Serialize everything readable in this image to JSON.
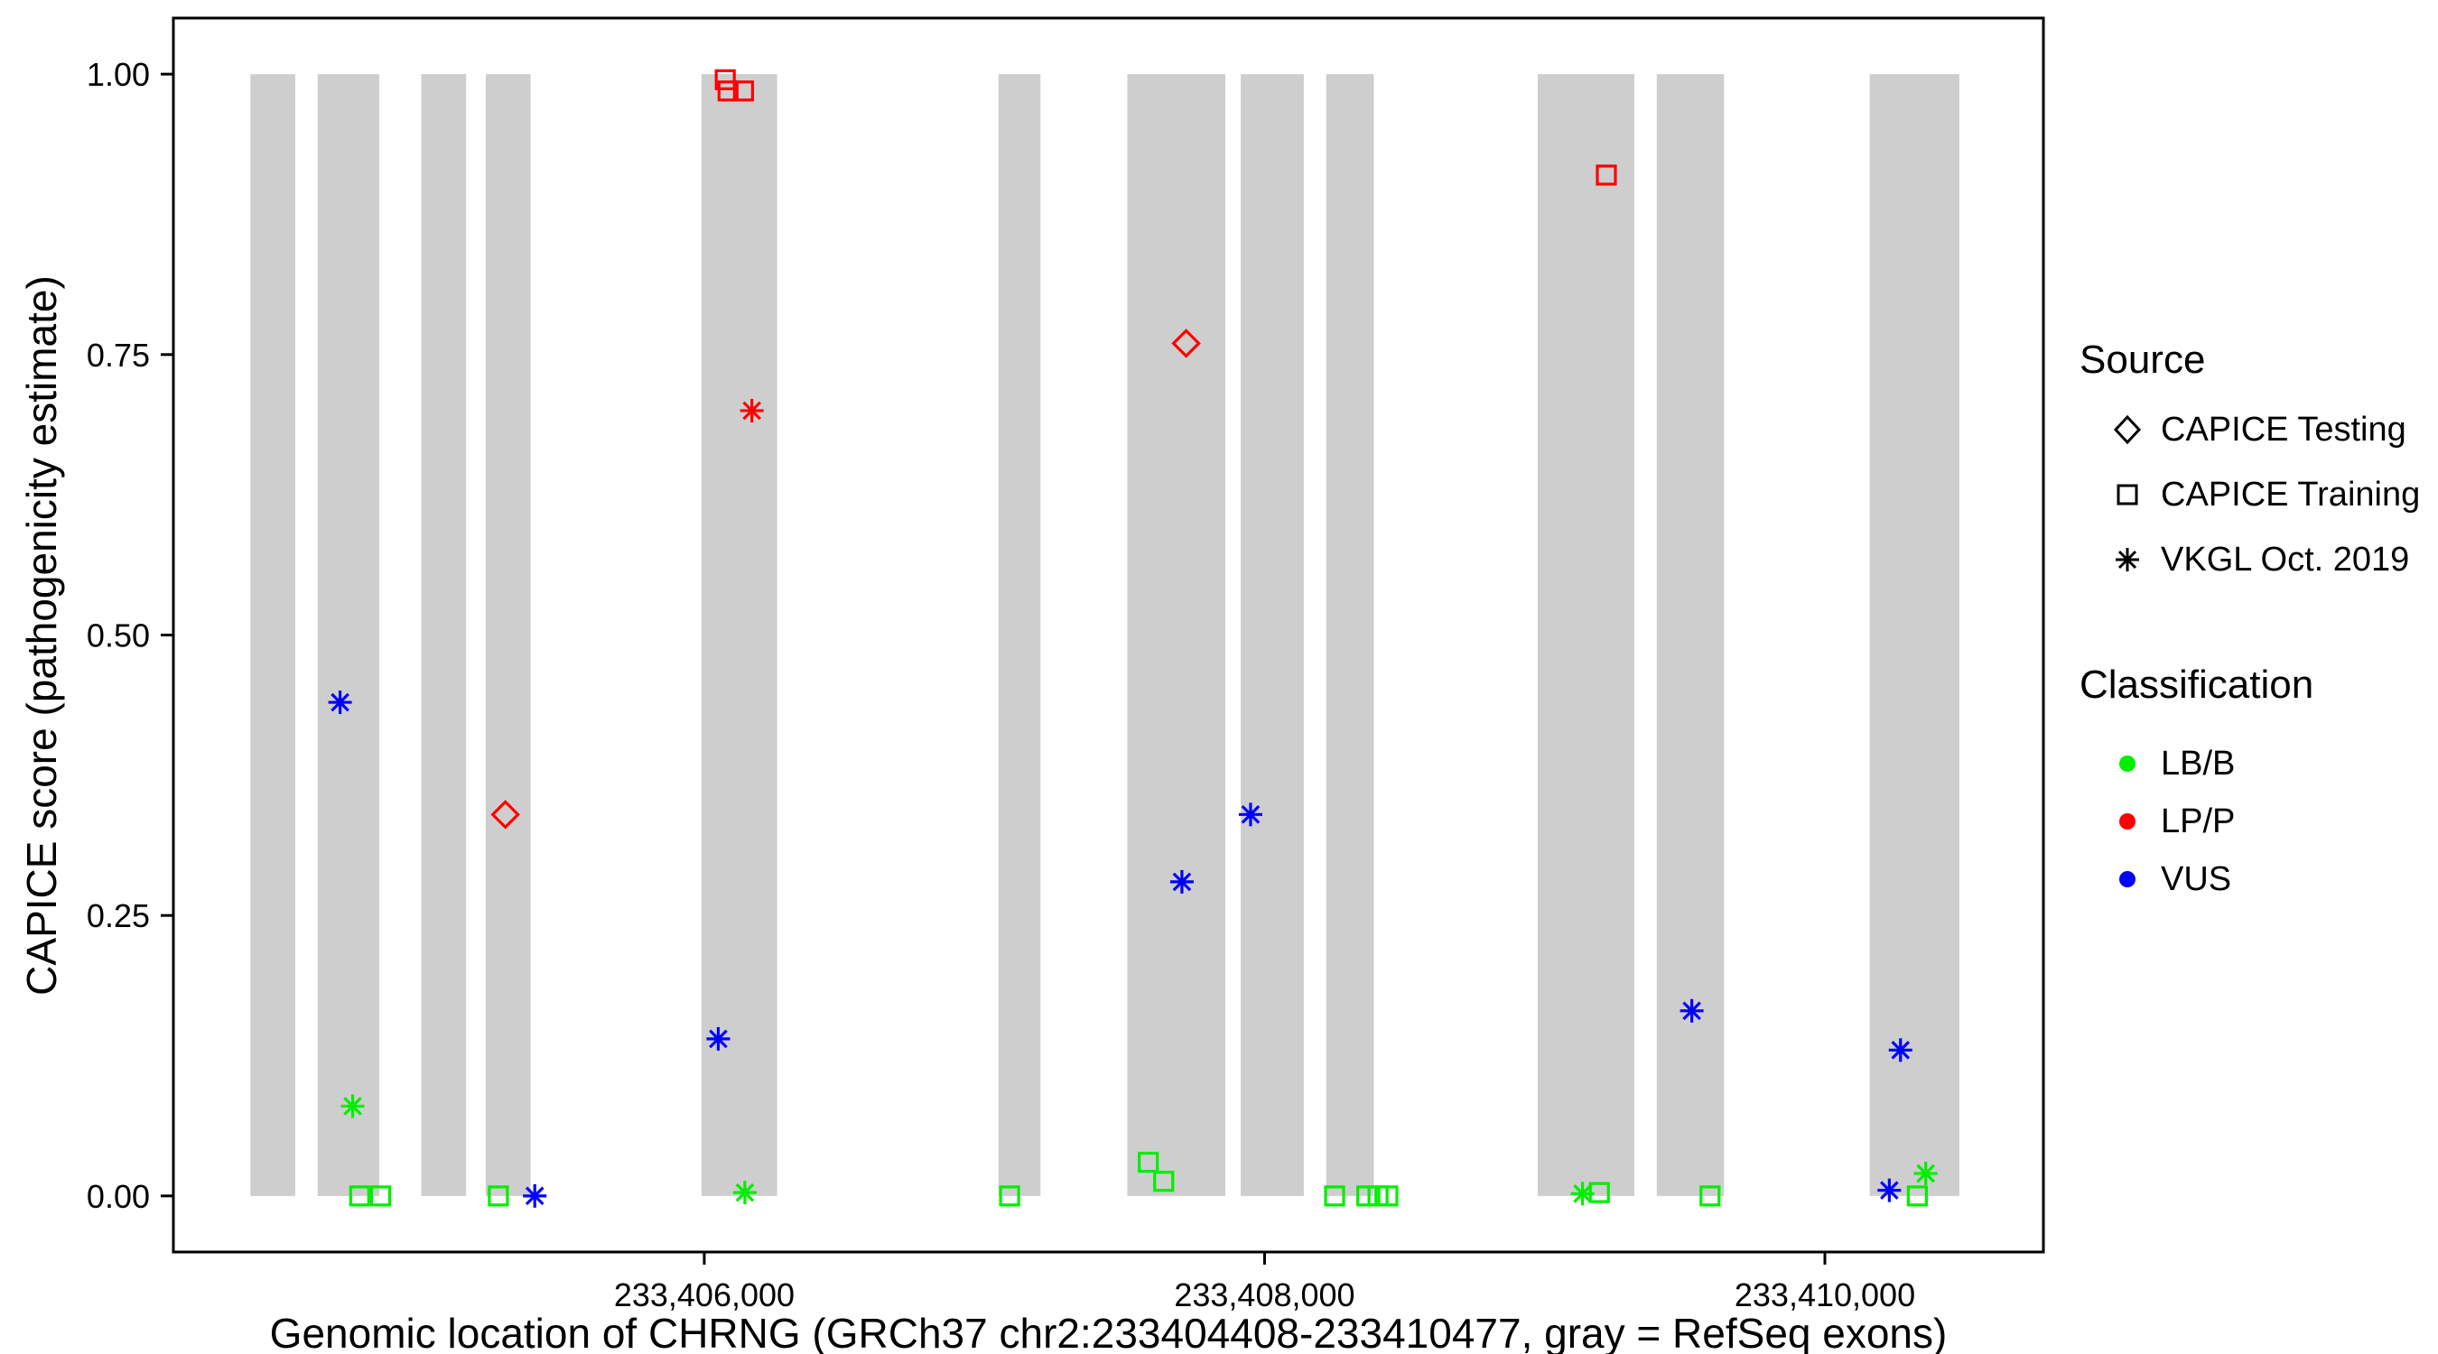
{
  "legend": {
    "source_title": "Source",
    "source_items": [
      {
        "label": "CAPICE Testing",
        "shape": "diamond"
      },
      {
        "label": "CAPICE Training",
        "shape": "square"
      },
      {
        "label": "VKGL Oct. 2019",
        "shape": "asterisk"
      }
    ],
    "classification_title": "Classification",
    "classification_items": [
      {
        "label": "LB/B",
        "color": "#00EE00"
      },
      {
        "label": "LP/P",
        "color": "#FF0000"
      },
      {
        "label": "VUS",
        "color": "#0000FF"
      }
    ]
  },
  "chart_data": {
    "type": "scatter",
    "title": "",
    "xlabel": "Genomic location of CHRNG (GRCh37 chr2:233404408-233410477, gray = RefSeq exons)",
    "ylabel": "CAPICE score (pathogenicity estimate)",
    "x_domain": [
      233404105,
      233410780
    ],
    "y_domain": [
      -0.05,
      1.05
    ],
    "x_ticks": [
      {
        "value": 233406000,
        "label": "233,406,000"
      },
      {
        "value": 233408000,
        "label": "233,408,000"
      },
      {
        "value": 233410000,
        "label": "233,410,000"
      }
    ],
    "y_ticks": [
      {
        "value": 0.0,
        "label": "0.00"
      },
      {
        "value": 0.25,
        "label": "0.25"
      },
      {
        "value": 0.5,
        "label": "0.50"
      },
      {
        "value": 0.75,
        "label": "0.75"
      },
      {
        "value": 1.0,
        "label": "1.00"
      }
    ],
    "exon_color": "#CECECE",
    "exon_band": [
      0.0,
      1.0
    ],
    "exons": [
      [
        233404380,
        233404540
      ],
      [
        233404620,
        233404840
      ],
      [
        233404990,
        233405150
      ],
      [
        233405220,
        233405380
      ],
      [
        233405990,
        233406260
      ],
      [
        233407050,
        233407200
      ],
      [
        233407510,
        233407860
      ],
      [
        233407915,
        233408140
      ],
      [
        233408220,
        233408390
      ],
      [
        233408975,
        233409320
      ],
      [
        233409400,
        233409640
      ],
      [
        233410160,
        233410480
      ]
    ],
    "colors": {
      "LB/B": "#00EE00",
      "LP/P": "#FF0000",
      "VUS": "#0000FF"
    },
    "shapes": {
      "CAPICE Testing": "diamond",
      "CAPICE Training": "square",
      "VKGL Oct. 2019": "asterisk"
    },
    "points": [
      {
        "x": 233404700,
        "y": 0.44,
        "source": "VKGL Oct. 2019",
        "class": "VUS"
      },
      {
        "x": 233404745,
        "y": 0.08,
        "source": "VKGL Oct. 2019",
        "class": "LB/B"
      },
      {
        "x": 233404770,
        "y": 0.0,
        "source": "CAPICE Training",
        "class": "LB/B"
      },
      {
        "x": 233404845,
        "y": 0.0,
        "source": "CAPICE Training",
        "class": "LB/B"
      },
      {
        "x": 233405290,
        "y": 0.34,
        "source": "CAPICE Testing",
        "class": "LP/P"
      },
      {
        "x": 233405265,
        "y": 0.0,
        "source": "CAPICE Training",
        "class": "LB/B"
      },
      {
        "x": 233405395,
        "y": 0.0,
        "source": "VKGL Oct. 2019",
        "class": "VUS"
      },
      {
        "x": 233406075,
        "y": 0.995,
        "source": "CAPICE Training",
        "class": "LP/P"
      },
      {
        "x": 233406085,
        "y": 0.985,
        "source": "CAPICE Training",
        "class": "LP/P"
      },
      {
        "x": 233406140,
        "y": 0.985,
        "source": "CAPICE Training",
        "class": "LP/P"
      },
      {
        "x": 233406170,
        "y": 0.7,
        "source": "VKGL Oct. 2019",
        "class": "LP/P"
      },
      {
        "x": 233406050,
        "y": 0.14,
        "source": "VKGL Oct. 2019",
        "class": "VUS"
      },
      {
        "x": 233406145,
        "y": 0.003,
        "source": "VKGL Oct. 2019",
        "class": "LB/B"
      },
      {
        "x": 233407090,
        "y": 0.0,
        "source": "CAPICE Training",
        "class": "LB/B"
      },
      {
        "x": 233407720,
        "y": 0.76,
        "source": "CAPICE Testing",
        "class": "LP/P"
      },
      {
        "x": 233407585,
        "y": 0.03,
        "source": "CAPICE Training",
        "class": "LB/B"
      },
      {
        "x": 233407640,
        "y": 0.013,
        "source": "CAPICE Training",
        "class": "LB/B"
      },
      {
        "x": 233407705,
        "y": 0.28,
        "source": "VKGL Oct. 2019",
        "class": "VUS"
      },
      {
        "x": 233407950,
        "y": 0.34,
        "source": "VKGL Oct. 2019",
        "class": "VUS"
      },
      {
        "x": 233408250,
        "y": 0.0,
        "source": "CAPICE Training",
        "class": "LB/B"
      },
      {
        "x": 233408365,
        "y": 0.0,
        "source": "CAPICE Training",
        "class": "LB/B"
      },
      {
        "x": 233408405,
        "y": 0.0,
        "source": "CAPICE Training",
        "class": "LB/B"
      },
      {
        "x": 233408440,
        "y": 0.0,
        "source": "CAPICE Training",
        "class": "LB/B"
      },
      {
        "x": 233409220,
        "y": 0.91,
        "source": "CAPICE Training",
        "class": "LP/P"
      },
      {
        "x": 233409135,
        "y": 0.002,
        "source": "VKGL Oct. 2019",
        "class": "LB/B"
      },
      {
        "x": 233409195,
        "y": 0.003,
        "source": "CAPICE Training",
        "class": "LB/B"
      },
      {
        "x": 233409525,
        "y": 0.165,
        "source": "VKGL Oct. 2019",
        "class": "VUS"
      },
      {
        "x": 233409590,
        "y": 0.0,
        "source": "CAPICE Training",
        "class": "LB/B"
      },
      {
        "x": 233410270,
        "y": 0.13,
        "source": "VKGL Oct. 2019",
        "class": "VUS"
      },
      {
        "x": 233410230,
        "y": 0.005,
        "source": "VKGL Oct. 2019",
        "class": "VUS"
      },
      {
        "x": 233410360,
        "y": 0.02,
        "source": "VKGL Oct. 2019",
        "class": "LB/B"
      },
      {
        "x": 233410330,
        "y": 0.0,
        "source": "CAPICE Training",
        "class": "LB/B"
      }
    ]
  }
}
